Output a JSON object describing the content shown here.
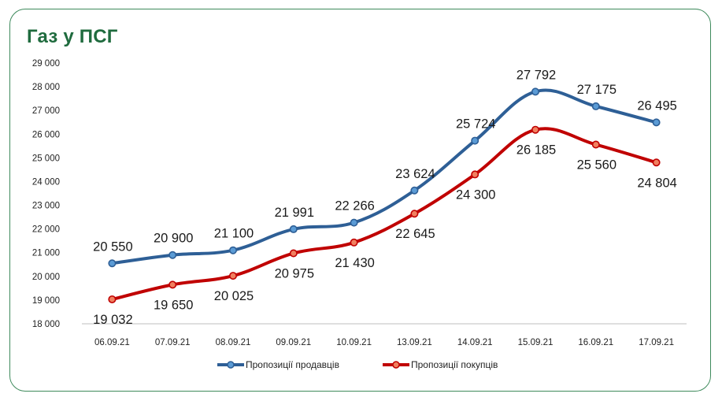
{
  "title": "Газ у ПСГ",
  "chart_data": {
    "type": "line",
    "title": "Газ у ПСГ",
    "categories": [
      "06.09.21",
      "07.09.21",
      "08.09.21",
      "09.09.21",
      "10.09.21",
      "13.09.21",
      "14.09.21",
      "15.09.21",
      "16.09.21",
      "17.09.21"
    ],
    "ylim": [
      18000,
      29000
    ],
    "yticks": [
      18000,
      19000,
      20000,
      21000,
      22000,
      23000,
      24000,
      25000,
      26000,
      27000,
      28000,
      29000
    ],
    "ytick_labels": [
      "18 000",
      "19 000",
      "20 000",
      "21 000",
      "22 000",
      "23 000",
      "24 000",
      "25 000",
      "26 000",
      "27 000",
      "28 000",
      "29 000"
    ],
    "grid": false,
    "legend_position": "bottom",
    "series": [
      {
        "name": "Пропозиції продавців",
        "color": "#2e5f96",
        "marker_fill": "#5b9bd5",
        "values": [
          20550,
          20900,
          21100,
          21991,
          22266,
          23624,
          25724,
          27792,
          27175,
          26495
        ],
        "labels": [
          "20 550",
          "20 900",
          "21 100",
          "21 991",
          "22 266",
          "23 624",
          "25 724",
          "27 792",
          "27 175",
          "26 495"
        ]
      },
      {
        "name": "Пропозиції покупців",
        "color": "#c00000",
        "marker_fill": "#f08060",
        "values": [
          19032,
          19650,
          20025,
          20975,
          21430,
          22645,
          24300,
          26185,
          25560,
          24804
        ],
        "labels": [
          "19 032",
          "19 650",
          "20 025",
          "20 975",
          "21 430",
          "22 645",
          "24 300",
          "26 185",
          "25 560",
          "24 804"
        ]
      }
    ]
  }
}
